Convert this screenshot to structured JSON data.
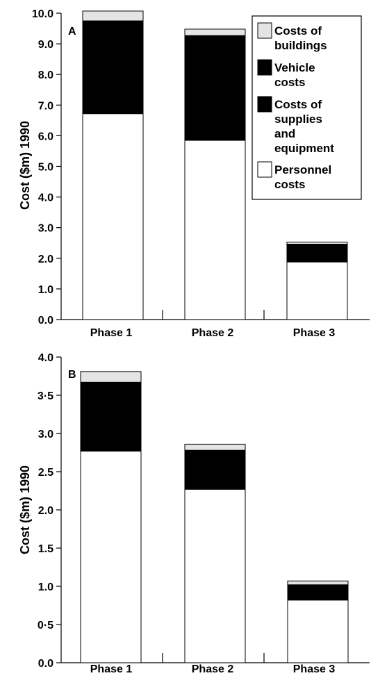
{
  "chart_data": [
    {
      "type": "bar",
      "stacked": true,
      "panel_label": "A",
      "ylabel": "Cost ($m) 1990",
      "ylim": [
        0,
        10
      ],
      "yticks": [
        "0.0",
        "1.0",
        "2.0",
        "3.0",
        "4.0",
        "5.0",
        "6.0",
        "7.0",
        "8.0",
        "9.0",
        "10.0"
      ],
      "categories": [
        "Phase 1",
        "Phase 2",
        "Phase 3"
      ],
      "series": [
        {
          "name": "Personnel costs",
          "color": "#ffffff",
          "values": [
            6.72,
            5.85,
            1.88
          ]
        },
        {
          "name": "Costs of supplies and equipment",
          "color": "#000000",
          "values": [
            2.03,
            1.95,
            0.42
          ]
        },
        {
          "name": "Vehicle costs",
          "color": "#000000",
          "values": [
            1.0,
            1.47,
            0.16
          ]
        },
        {
          "name": "Costs of buildings",
          "color": "#e4e4e4",
          "values": [
            0.32,
            0.21,
            0.07
          ]
        }
      ],
      "legend": {
        "placement": "top-right",
        "entries": [
          {
            "label_lines": [
              "Costs of",
              "buildings"
            ],
            "color": "#e4e4e4"
          },
          {
            "label_lines": [
              "Vehicle",
              "costs"
            ],
            "color": "#000000"
          },
          {
            "label_lines": [
              "Costs of",
              "supplies",
              "and",
              "equipment"
            ],
            "color": "#000000"
          },
          {
            "label_lines": [
              "Personnel",
              "costs"
            ],
            "color": "#ffffff"
          }
        ]
      }
    },
    {
      "type": "bar",
      "stacked": true,
      "panel_label": "B",
      "ylabel": "Cost ($m) 1990",
      "ylim": [
        0,
        4
      ],
      "yticks": [
        "0.0",
        "0·5",
        "1.0",
        "1.5",
        "2.0",
        "2.5",
        "3.0",
        "3·5",
        "4.0"
      ],
      "categories": [
        "Phase 1",
        "Phase 2",
        "Phase 3"
      ],
      "series": [
        {
          "name": "Personnel costs",
          "color": "#ffffff",
          "values": [
            2.77,
            2.27,
            0.82
          ]
        },
        {
          "name": "Costs of supplies and equipment",
          "color": "#000000",
          "values": [
            0.6,
            0.35,
            0.13
          ]
        },
        {
          "name": "Vehicle costs",
          "color": "#000000",
          "values": [
            0.3,
            0.16,
            0.07
          ]
        },
        {
          "name": "Costs of buildings",
          "color": "#e4e4e4",
          "values": [
            0.14,
            0.08,
            0.05
          ]
        }
      ]
    }
  ]
}
